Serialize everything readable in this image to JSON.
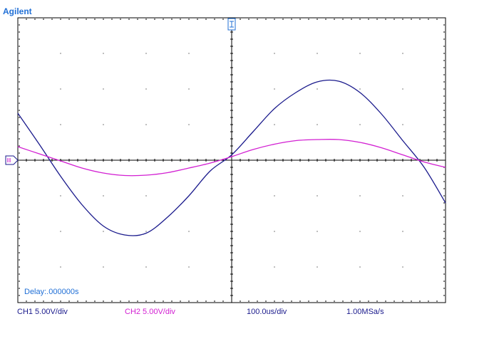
{
  "brand": "Agilent",
  "delay_text": "Delay:.000000s",
  "status": {
    "ch1": "CH1 5.00V/div",
    "ch2": "CH2 5.00V/div",
    "timebase": "100.0us/div",
    "sample_rate": "1.00MSa/s"
  },
  "colors": {
    "ch1": "#1a1a8c",
    "ch2": "#d21fd2",
    "brand": "#1f6fd6",
    "grid": "#000000"
  },
  "markers": {
    "trigger_icon": "trigger-marker-icon",
    "ground_icon": "ground-marker-icon"
  },
  "chart_data": {
    "type": "line",
    "grid_divisions": {
      "x": 10,
      "y": 8
    },
    "x_unit": "div",
    "y_unit": "div",
    "xlim": [
      0,
      10
    ],
    "ylim": [
      -4,
      4
    ],
    "grid": true,
    "series": [
      {
        "name": "CH1",
        "color": "#1a1a8c",
        "x": [
          0.0,
          0.5,
          1.0,
          1.5,
          2.0,
          2.5,
          3.0,
          3.5,
          4.0,
          4.5,
          5.0,
          5.5,
          6.0,
          6.5,
          7.0,
          7.5,
          8.0,
          8.5,
          9.0,
          9.5,
          10.0
        ],
        "y": [
          1.32,
          0.45,
          -0.45,
          -1.25,
          -1.85,
          -2.1,
          -2.05,
          -1.6,
          -1.0,
          -0.3,
          0.15,
          0.8,
          1.45,
          1.9,
          2.2,
          2.22,
          1.9,
          1.3,
          0.55,
          -0.2,
          -1.2
        ]
      },
      {
        "name": "CH2",
        "color": "#d21fd2",
        "x": [
          0.0,
          0.5,
          1.0,
          1.5,
          2.0,
          2.5,
          3.0,
          3.5,
          4.0,
          4.5,
          5.0,
          5.5,
          6.0,
          6.5,
          7.0,
          7.5,
          8.0,
          8.5,
          9.0,
          9.5,
          10.0
        ],
        "y": [
          0.38,
          0.18,
          -0.02,
          -0.22,
          -0.36,
          -0.43,
          -0.42,
          -0.35,
          -0.22,
          -0.08,
          0.1,
          0.3,
          0.45,
          0.55,
          0.58,
          0.58,
          0.5,
          0.35,
          0.15,
          -0.05,
          -0.2
        ]
      }
    ]
  }
}
